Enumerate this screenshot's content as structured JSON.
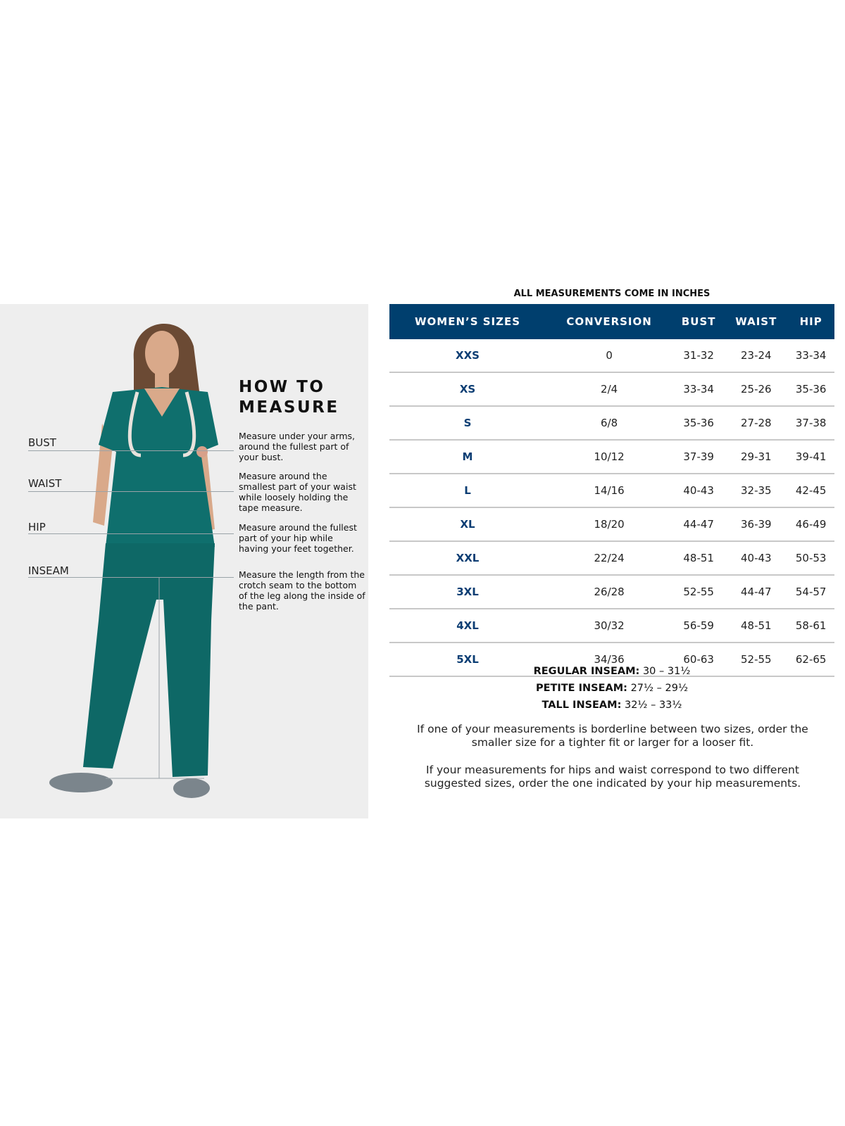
{
  "how_to_measure": {
    "title_line1": "HOW TO",
    "title_line2": "MEASURE",
    "items": [
      {
        "label": "BUST",
        "description": "Measure under your arms, around the fullest part of your bust."
      },
      {
        "label": "WAIST",
        "description": "Measure around the smallest part of your waist while loosely holding the tape measure."
      },
      {
        "label": "HIP",
        "description": "Measure around the fullest part of your hip while having your feet together."
      },
      {
        "label": "INSEAM",
        "description": "Measure the length from the crotch seam to the bottom of the leg along the inside of the pant."
      }
    ]
  },
  "size_chart": {
    "note": "ALL MEASUREMENTS COME IN INCHES",
    "header_color": "#003f6e",
    "size_color": "#0b3d73",
    "columns": [
      "WOMEN’S SIZES",
      "CONVERSION",
      "BUST",
      "WAIST",
      "HIP"
    ],
    "rows": [
      [
        "XXS",
        "0",
        "31-32",
        "23-24",
        "33-34"
      ],
      [
        "XS",
        "2/4",
        "33-34",
        "25-26",
        "35-36"
      ],
      [
        "S",
        "6/8",
        "35-36",
        "27-28",
        "37-38"
      ],
      [
        "M",
        "10/12",
        "37-39",
        "29-31",
        "39-41"
      ],
      [
        "L",
        "14/16",
        "40-43",
        "32-35",
        "42-45"
      ],
      [
        "XL",
        "18/20",
        "44-47",
        "36-39",
        "46-49"
      ],
      [
        "XXL",
        "22/24",
        "48-51",
        "40-43",
        "50-53"
      ],
      [
        "3XL",
        "26/28",
        "52-55",
        "44-47",
        "54-57"
      ],
      [
        "4XL",
        "30/32",
        "56-59",
        "48-51",
        "58-61"
      ],
      [
        "5XL",
        "34/36",
        "60-63",
        "52-55",
        "62-65"
      ]
    ]
  },
  "inseam": [
    {
      "label": "REGULAR INSEAM:",
      "value": "30  – 31½"
    },
    {
      "label": "PETITE INSEAM:",
      "value": "27½ – 29½"
    },
    {
      "label": "TALL INSEAM:",
      "value": "32½ – 33½"
    }
  ],
  "notes": [
    "If one of your measurements is borderline between two sizes, order the smaller size for a tighter fit or larger for a looser fit.",
    "If your measurements for hips and waist correspond to two different suggested sizes, order the one indicated by your hip measurements."
  ]
}
